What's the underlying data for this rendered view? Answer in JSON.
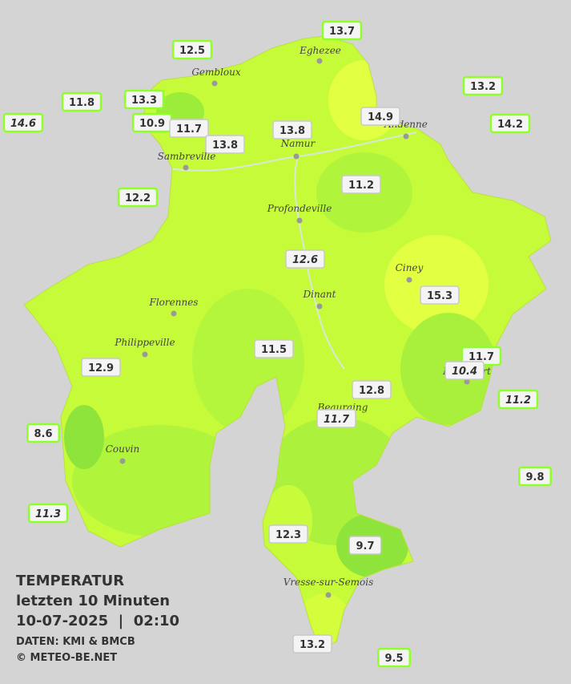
{
  "title": [
    "TEMPERATUR",
    "letzten 10 Minuten",
    "10-07-2025  |  02:10"
  ],
  "credits": [
    "DATEN: KMI & BMCB",
    "© METEO-BE.NET"
  ],
  "cities": [
    "Eghezee",
    "Gembloux",
    "Andenne",
    "Namur",
    "Sambreville",
    "Profondeville",
    "Ciney",
    "Dinant",
    "Florennes",
    "Philippeville",
    "Rochefort",
    "Beauraing",
    "Couvin",
    "Vresse-sur-Semois"
  ],
  "stations": [
    {
      "label": "13.7",
      "outside": true,
      "italic": false
    },
    {
      "label": "12.5",
      "outside": true,
      "italic": false
    },
    {
      "label": "11.8",
      "outside": true,
      "italic": false
    },
    {
      "label": "13.3",
      "outside": true,
      "italic": false
    },
    {
      "label": "14.6",
      "outside": true,
      "italic": true
    },
    {
      "label": "10.9",
      "outside": true,
      "italic": false
    },
    {
      "label": "11.7",
      "outside": false,
      "italic": false
    },
    {
      "label": "13.8",
      "outside": false,
      "italic": false
    },
    {
      "label": "13.8",
      "outside": false,
      "italic": false
    },
    {
      "label": "14.9",
      "outside": false,
      "italic": false
    },
    {
      "label": "13.2",
      "outside": true,
      "italic": false
    },
    {
      "label": "14.2",
      "outside": true,
      "italic": false
    },
    {
      "label": "12.2",
      "outside": true,
      "italic": false
    },
    {
      "label": "11.2",
      "outside": false,
      "italic": false
    },
    {
      "label": "12.6",
      "outside": false,
      "italic": true
    },
    {
      "label": "15.3",
      "outside": false,
      "italic": false
    },
    {
      "label": "11.5",
      "outside": false,
      "italic": false
    },
    {
      "label": "12.9",
      "outside": false,
      "italic": false
    },
    {
      "label": "11.7",
      "outside": true,
      "italic": false
    },
    {
      "label": "10.4",
      "outside": false,
      "italic": true
    },
    {
      "label": "11.2",
      "outside": true,
      "italic": true
    },
    {
      "label": "12.8",
      "outside": false,
      "italic": false
    },
    {
      "label": "11.7",
      "outside": false,
      "italic": true
    },
    {
      "label": "8.6",
      "outside": true,
      "italic": false
    },
    {
      "label": "9.8",
      "outside": true,
      "italic": false
    },
    {
      "label": "11.3",
      "outside": true,
      "italic": true
    },
    {
      "label": "12.3",
      "outside": false,
      "italic": false
    },
    {
      "label": "9.7",
      "outside": false,
      "italic": false
    },
    {
      "label": "13.2",
      "outside": false,
      "italic": false
    },
    {
      "label": "9.5",
      "outside": true,
      "italic": false
    }
  ]
}
